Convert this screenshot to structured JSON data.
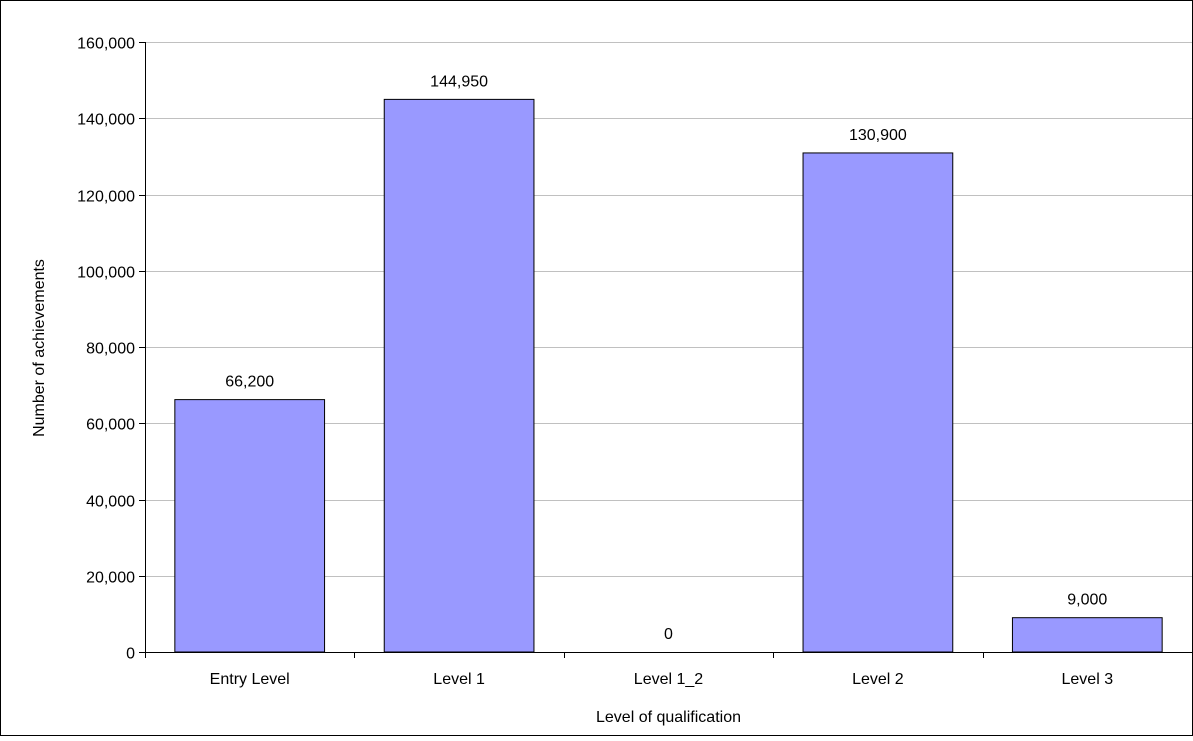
{
  "chart_data": {
    "type": "bar",
    "title": "",
    "xlabel": "Level of qualification",
    "ylabel": "Number of achievements",
    "categories": [
      "Entry Level",
      "Level 1",
      "Level 1_2",
      "Level 2",
      "Level 3"
    ],
    "values": [
      66200,
      144950,
      0,
      130900,
      9000
    ],
    "data_labels": [
      "66,200",
      "144,950",
      "0",
      "130,900",
      "9,000"
    ],
    "ylim": [
      0,
      160000
    ],
    "yticks": [
      0,
      20000,
      40000,
      60000,
      80000,
      100000,
      120000,
      140000,
      160000
    ],
    "ytick_labels": [
      "0",
      "20,000",
      "40,000",
      "60,000",
      "80,000",
      "100,000",
      "120,000",
      "140,000",
      "160,000"
    ],
    "grid": true,
    "legend": "none",
    "bar_color": "#9999ff",
    "bar_edge_color": "#000000",
    "grid_color": "#c0c0c0"
  }
}
